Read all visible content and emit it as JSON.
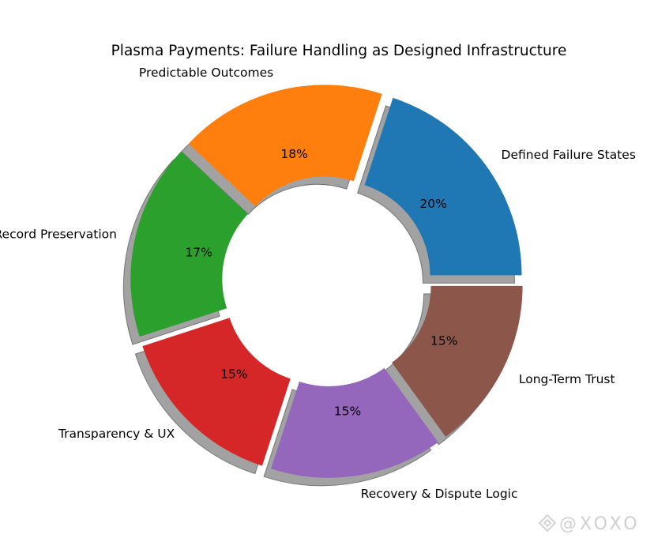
{
  "chart_data": {
    "type": "pie",
    "variant": "donut",
    "title": "Plasma Payments: Failure Handling as Designed Infrastructure",
    "categories": [
      "Defined Failure States",
      "Predictable Outcomes",
      "Record Preservation",
      "Transparency & UX",
      "Recovery & Dispute Logic",
      "Long-Term Trust"
    ],
    "values": [
      20,
      18,
      17,
      15,
      15,
      15
    ],
    "pct_labels": [
      "20%",
      "18%",
      "17%",
      "15%",
      "15%",
      "15%"
    ],
    "colors": [
      "#1f77b4",
      "#ff7f0e",
      "#2ca02c",
      "#d62728",
      "#9467bd",
      "#8c564b"
    ],
    "start_angle_deg": 0,
    "direction": "counterclockwise",
    "exploded": true,
    "shadow": true
  },
  "watermark": "@XOXO"
}
